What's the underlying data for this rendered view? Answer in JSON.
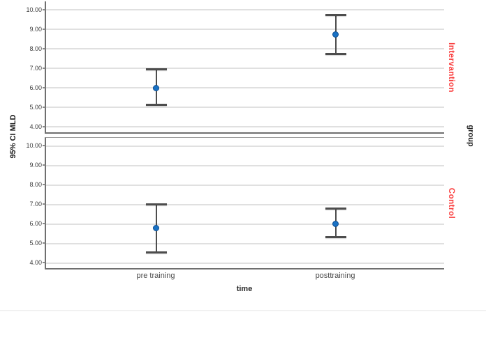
{
  "figure": {
    "background": "#ffffff"
  },
  "chart_data": {
    "type": "errorbar",
    "title": "",
    "xlabel": "time",
    "ylabel": "95% CI MLD",
    "facet_label": "group",
    "categories": [
      "pre training",
      "posttraining"
    ],
    "y_tick_labels": [
      "10.00",
      "9.00",
      "8.00",
      "7.00",
      "6.00",
      "5.00",
      "4.00"
    ],
    "y_tick_values": [
      10,
      9,
      8,
      7,
      6,
      5,
      4
    ],
    "ylim": [
      3.6,
      10.4
    ],
    "grid": true,
    "legend": "none",
    "panels": [
      {
        "label": "Intervantion",
        "label_color": "#fa3c3c",
        "points": [
          {
            "category": "pre training",
            "mean": 6.0,
            "ci_low": 5.1,
            "ci_high": 6.95
          },
          {
            "category": "posttraining",
            "mean": 8.73,
            "ci_low": 7.7,
            "ci_high": 9.75
          }
        ]
      },
      {
        "label": "Control",
        "label_color": "#fa3c3c",
        "points": [
          {
            "category": "pre training",
            "mean": 5.78,
            "ci_low": 4.5,
            "ci_high": 7.0
          },
          {
            "category": "posttraining",
            "mean": 6.0,
            "ci_low": 5.3,
            "ci_high": 6.8
          }
        ]
      }
    ],
    "colors": {
      "marker": "#1a72c4",
      "marker_border": "#0d4d8f",
      "error_bar": "#4d4d4d",
      "gridline": "#e0e0e0",
      "axis": "#6f6f6f",
      "tick_label": "#3d3d3d",
      "category_label": "#4a4a4a"
    }
  }
}
